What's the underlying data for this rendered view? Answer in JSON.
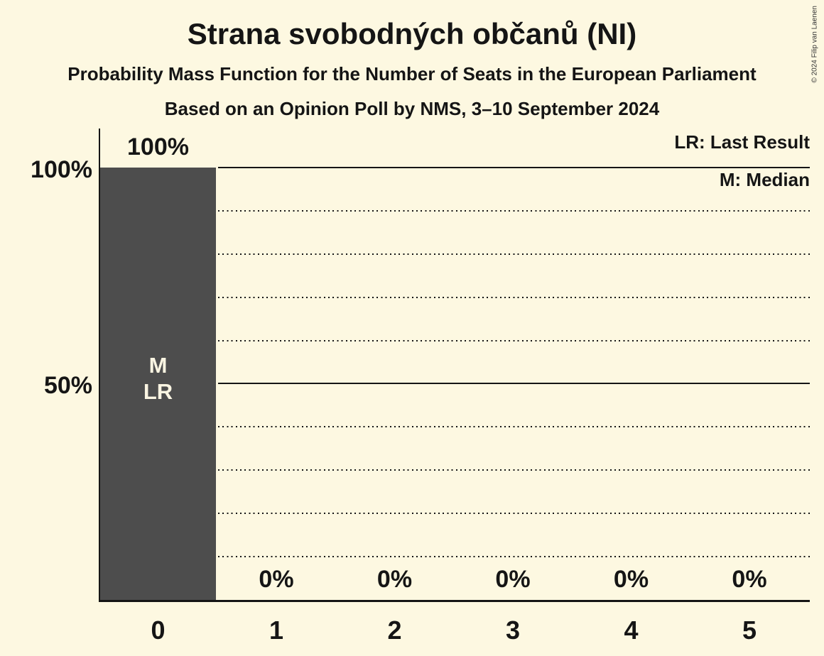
{
  "header": {
    "title": "Strana svobodných občanů (NI)",
    "subtitle": "Probability Mass Function for the Number of Seats in the European Parliament",
    "poll_details": "Based on an Opinion Poll by NMS, 3–10 September 2024"
  },
  "copyright": "© 2024 Filip van Laenen",
  "legend": {
    "last_result": "LR: Last Result",
    "median": "M: Median"
  },
  "y_axis": {
    "labels": [
      "100%",
      "50%"
    ]
  },
  "colors": {
    "background": "#FDF8E1",
    "bar": "#4D4D4D",
    "bar_annotation_text": "#FAF5E2",
    "text": "#151515"
  },
  "chart_data": {
    "type": "bar",
    "title": "Strana svobodných občanů (NI)",
    "xlabel": "",
    "ylabel": "",
    "categories": [
      "0",
      "1",
      "2",
      "3",
      "4",
      "5"
    ],
    "values": [
      100,
      0,
      0,
      0,
      0,
      0
    ],
    "bar_labels": [
      "100%",
      "0%",
      "0%",
      "0%",
      "0%",
      "0%"
    ],
    "ylim": [
      0,
      109
    ],
    "gridlines": {
      "solid_percents": [
        50,
        100
      ],
      "dotted_percents": [
        10,
        20,
        30,
        40,
        60,
        70,
        80,
        90
      ]
    },
    "annotations": [
      {
        "category": "0",
        "lines": [
          "M",
          "LR"
        ]
      }
    ]
  }
}
